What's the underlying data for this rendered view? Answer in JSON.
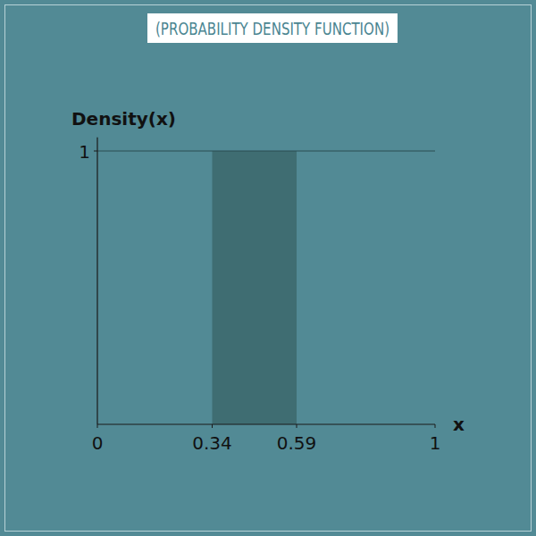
{
  "chart_data": {
    "type": "line",
    "title": "(PROBABILITY DENSITY FUNCTION)",
    "x_label": "x",
    "y_label": "Density(x)",
    "x": [
      0,
      1
    ],
    "values": [
      1,
      1
    ],
    "shaded_interval": [
      0.34,
      0.59
    ],
    "color": "#3f6d72",
    "xlim": [
      0,
      1
    ],
    "ylim": [
      0,
      1.05
    ],
    "xticks": [
      0,
      0.34,
      0.59,
      1
    ],
    "yticks": [
      1
    ],
    "grid": false
  }
}
